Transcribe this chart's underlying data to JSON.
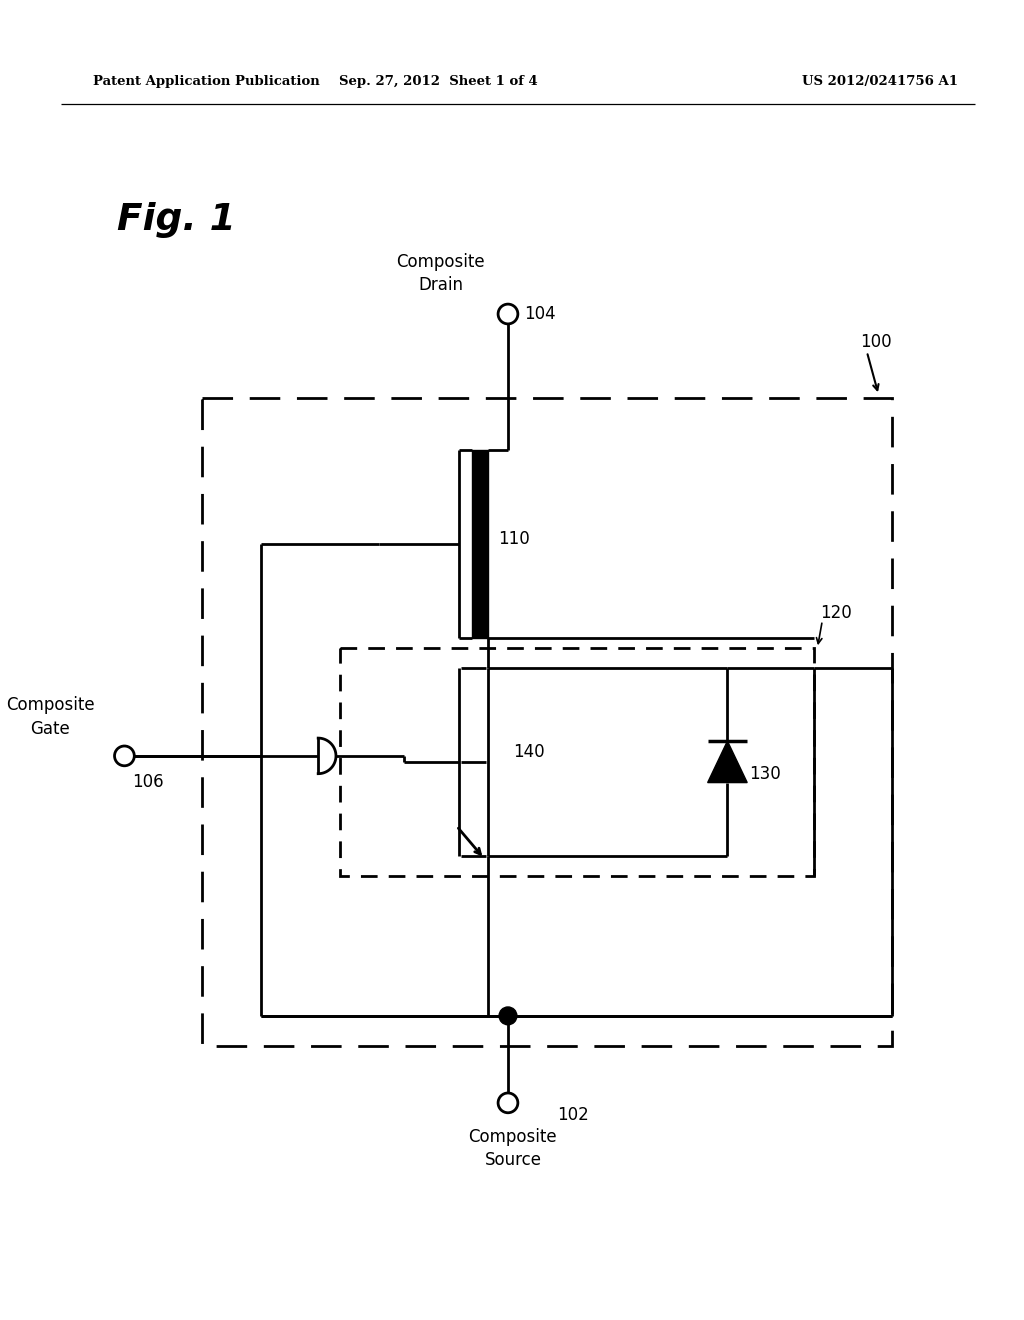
{
  "bg_color": "#ffffff",
  "header_left": "Patent Application Publication",
  "header_mid": "Sep. 27, 2012  Sheet 1 of 4",
  "header_right": "US 2012/0241756 A1",
  "fig_label": "Fig. 1",
  "label_100": "100",
  "label_104": "104",
  "label_106": "106",
  "label_102": "102",
  "label_110": "110",
  "label_120": "120",
  "label_130": "130",
  "label_140": "140",
  "text_composite_drain": "Composite\nDrain",
  "text_composite_gate": "Composite\nGate",
  "text_composite_source": "Composite\nSource"
}
